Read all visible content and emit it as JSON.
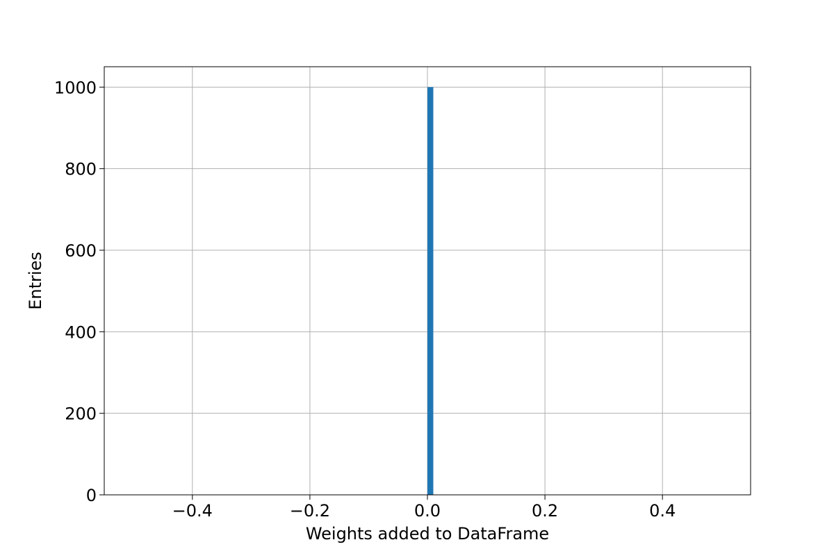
{
  "chart_data": {
    "type": "bar",
    "title": "",
    "xlabel": "Weights added to DataFrame",
    "ylabel": "Entries",
    "xlim": [
      -0.55,
      0.55
    ],
    "ylim": [
      0,
      1050
    ],
    "grid": true,
    "bar_color": "#1f77b4",
    "grid_color": "#b0b0b0",
    "xticks": [
      {
        "value": -0.4,
        "label": "−0.4"
      },
      {
        "value": -0.2,
        "label": "−0.2"
      },
      {
        "value": 0.0,
        "label": "0.0"
      },
      {
        "value": 0.2,
        "label": "0.2"
      },
      {
        "value": 0.4,
        "label": "0.4"
      }
    ],
    "yticks": [
      {
        "value": 0,
        "label": "0"
      },
      {
        "value": 200,
        "label": "200"
      },
      {
        "value": 400,
        "label": "400"
      },
      {
        "value": 600,
        "label": "600"
      },
      {
        "value": 800,
        "label": "800"
      },
      {
        "value": 1000,
        "label": "1000"
      }
    ],
    "bins": [
      {
        "x0": 0.0,
        "x1": 0.01,
        "value": 1000
      }
    ]
  }
}
